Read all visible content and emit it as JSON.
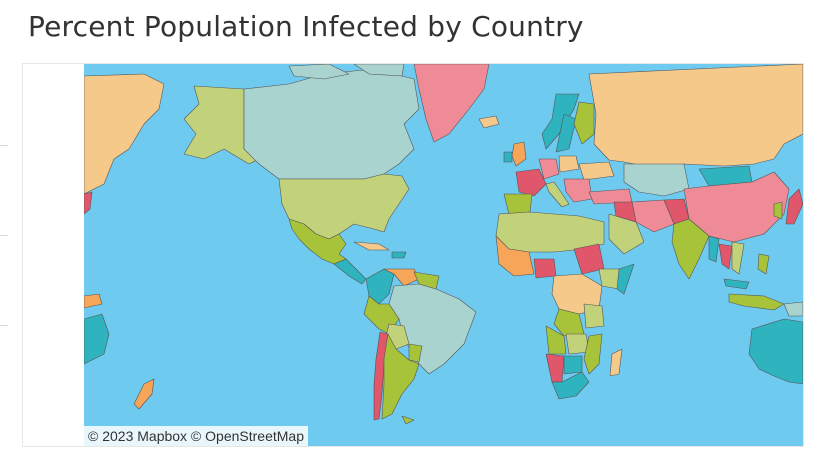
{
  "title": "Percent Population Infected by Country",
  "attribution": "© 2023 Mapbox  © OpenStreetMap",
  "colors": {
    "ocean": "#6fcaf0",
    "land_peach": "#f5c98a",
    "land_pink": "#ef8b97",
    "land_teal": "#2fb3be",
    "land_green": "#a6c33a",
    "land_lightgreen": "#c2d27a",
    "land_sage": "#a9d3cf",
    "land_red": "#e0566a",
    "land_orange": "#f7a558",
    "border": "#555555"
  }
}
